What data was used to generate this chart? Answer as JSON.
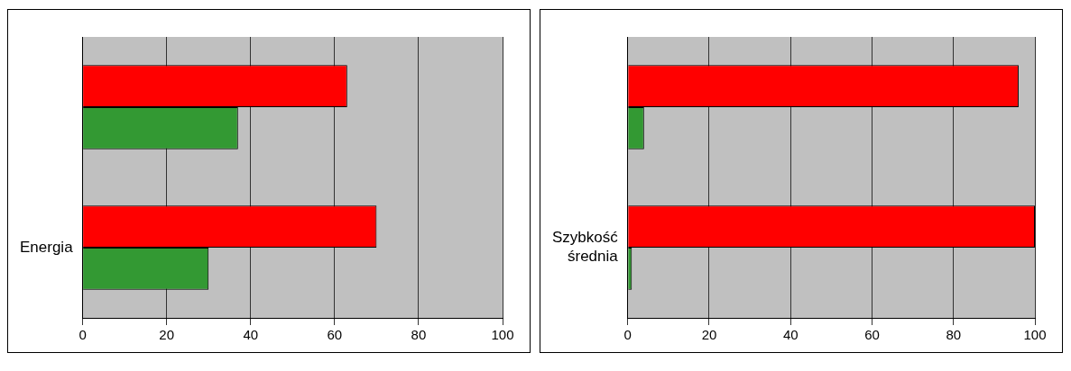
{
  "chart_data": [
    {
      "type": "bar",
      "orientation": "horizontal",
      "categories": [
        null,
        "Energia"
      ],
      "series": [
        {
          "color": "#ff0000",
          "values": [
            63,
            70
          ]
        },
        {
          "color": "#339933",
          "values": [
            37,
            30
          ]
        }
      ],
      "xlim": [
        0,
        100
      ],
      "xticks": [
        0,
        20,
        40,
        60,
        80,
        100
      ],
      "grid": "x",
      "legend": false
    },
    {
      "type": "bar",
      "orientation": "horizontal",
      "categories": [
        null,
        "Szybkość średnia"
      ],
      "series": [
        {
          "color": "#ff0000",
          "values": [
            96,
            100
          ]
        },
        {
          "color": "#339933",
          "values": [
            4,
            1
          ]
        }
      ],
      "xlim": [
        0,
        100
      ],
      "xticks": [
        0,
        20,
        40,
        60,
        80,
        100
      ],
      "grid": "x",
      "legend": false
    }
  ]
}
